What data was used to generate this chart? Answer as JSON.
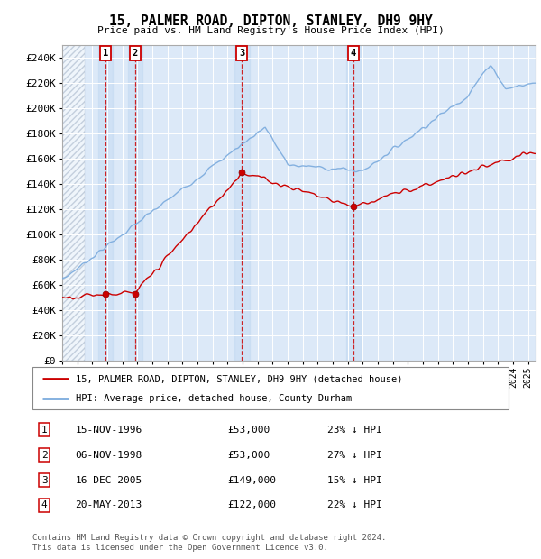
{
  "title": "15, PALMER ROAD, DIPTON, STANLEY, DH9 9HY",
  "subtitle": "Price paid vs. HM Land Registry's House Price Index (HPI)",
  "ylim": [
    0,
    250000
  ],
  "yticks": [
    0,
    20000,
    40000,
    60000,
    80000,
    100000,
    120000,
    140000,
    160000,
    180000,
    200000,
    220000,
    240000
  ],
  "ytick_labels": [
    "£0",
    "£20K",
    "£40K",
    "£60K",
    "£80K",
    "£100K",
    "£120K",
    "£140K",
    "£160K",
    "£180K",
    "£200K",
    "£220K",
    "£240K"
  ],
  "plot_bg_color": "#dce9f8",
  "grid_color": "#ffffff",
  "hpi_color": "#7aaadd",
  "red_color": "#cc0000",
  "legend_items": [
    {
      "label": "15, PALMER ROAD, DIPTON, STANLEY, DH9 9HY (detached house)",
      "color": "#cc0000"
    },
    {
      "label": "HPI: Average price, detached house, County Durham",
      "color": "#7aaadd"
    }
  ],
  "transactions": [
    {
      "num": 1,
      "date": "15-NOV-1996",
      "price": 53000,
      "pct": "23% ↓ HPI",
      "year_x": 1996.87
    },
    {
      "num": 2,
      "date": "06-NOV-1998",
      "price": 53000,
      "pct": "27% ↓ HPI",
      "year_x": 1998.85
    },
    {
      "num": 3,
      "date": "16-DEC-2005",
      "price": 149000,
      "pct": "15% ↓ HPI",
      "year_x": 2005.96
    },
    {
      "num": 4,
      "date": "20-MAY-2013",
      "price": 122000,
      "pct": "22% ↓ HPI",
      "year_x": 2013.38
    }
  ],
  "table_rows": [
    [
      "1",
      "15-NOV-1996",
      "£53,000",
      "23% ↓ HPI"
    ],
    [
      "2",
      "06-NOV-1998",
      "£53,000",
      "27% ↓ HPI"
    ],
    [
      "3",
      "16-DEC-2005",
      "£149,000",
      "15% ↓ HPI"
    ],
    [
      "4",
      "20-MAY-2013",
      "£122,000",
      "22% ↓ HPI"
    ]
  ],
  "footer": "Contains HM Land Registry data © Crown copyright and database right 2024.\nThis data is licensed under the Open Government Licence v3.0.",
  "xmin": 1994.0,
  "xmax": 2025.5,
  "hatch_end": 1995.5
}
